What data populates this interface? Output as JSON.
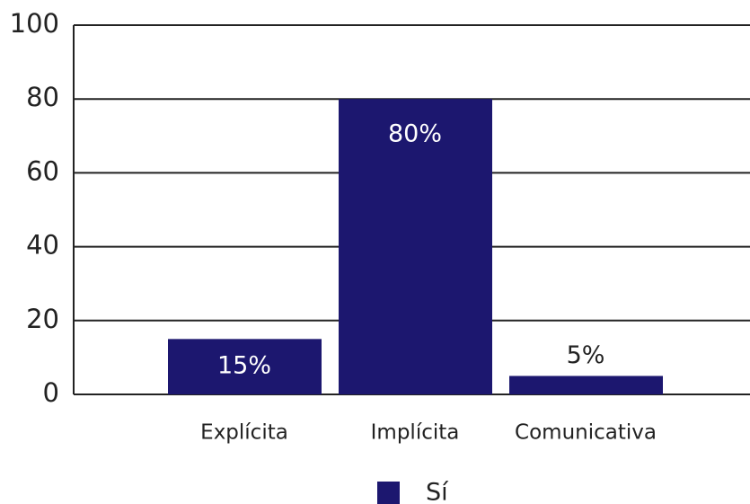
{
  "chart_data": {
    "type": "bar",
    "categories": [
      "Explícita",
      "Implícita",
      "Comunicativa"
    ],
    "series": [
      {
        "name": "Sí",
        "color": "#1c176f",
        "values": [
          15,
          80,
          5
        ],
        "value_labels": [
          "15%",
          "80%",
          "5%"
        ]
      }
    ],
    "ylim": [
      0,
      100
    ],
    "yticks": [
      0,
      20,
      40,
      60,
      80,
      100
    ],
    "grid": true,
    "legend": "bottom"
  }
}
